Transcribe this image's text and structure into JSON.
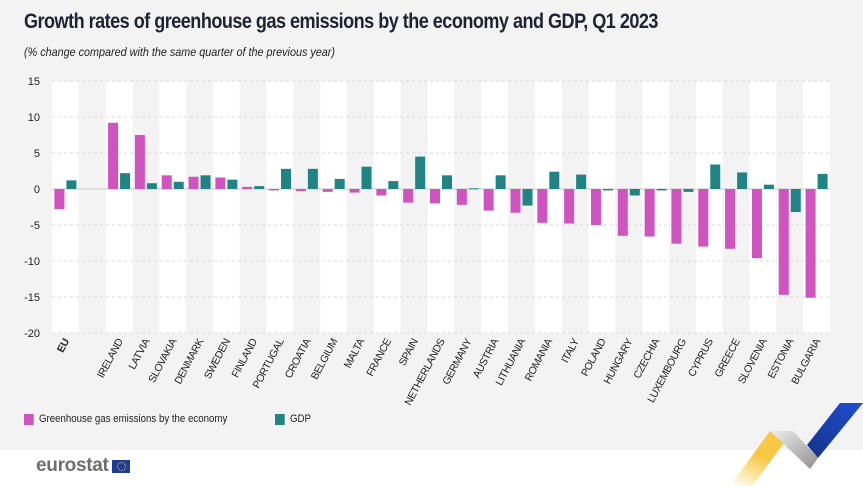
{
  "header": {
    "title": "Growth rates of greenhouse gas emissions by the economy and GDP, Q1 2023",
    "subtitle": "(% change compared with the same quarter of the previous year)"
  },
  "legend": {
    "ghg_label": "Greenhouse gas emissions by the economy",
    "gdp_label": "GDP"
  },
  "colors": {
    "ghg": "#d054c0",
    "gdp": "#1f8483",
    "band_light": "#ffffff",
    "band_dark": "#f3f3f3",
    "grid": "#d9d9d9"
  },
  "footer": {
    "logo_text": "eurostat"
  },
  "chart_data": {
    "type": "bar",
    "title": "Growth rates of greenhouse gas emissions by the economy and GDP, Q1 2023",
    "subtitle": "(% change compared with the same quarter of the previous year)",
    "xlabel": "",
    "ylabel": "",
    "ylim": [
      -20,
      15
    ],
    "yticks": [
      15,
      10,
      5,
      0,
      -5,
      -10,
      -15,
      -20
    ],
    "grid": true,
    "legend_position": "bottom-left",
    "categories": [
      "EU",
      "",
      "IRELAND",
      "LATVIA",
      "SLOVAKIA",
      "DENMARK",
      "SWEDEN",
      "FINLAND",
      "PORTUGAL",
      "CROATIA",
      "BELGIUM",
      "MALTA",
      "FRANCE",
      "SPAIN",
      "NETHERLANDS",
      "GERMANY",
      "AUSTRIA",
      "LITHUANIA",
      "ROMANIA",
      "ITALY",
      "POLAND",
      "HUNGARY",
      "CZECHIA",
      "LUXEMBOURG",
      "CYPRUS",
      "GREECE",
      "SLOVENIA",
      "ESTONIA",
      "BULGARIA"
    ],
    "series": [
      {
        "name": "Greenhouse gas emissions by the economy",
        "values": [
          -2.8,
          null,
          9.2,
          7.5,
          1.9,
          1.7,
          1.6,
          0.3,
          -0.2,
          -0.3,
          -0.4,
          -0.5,
          -0.9,
          -1.9,
          -2.0,
          -2.2,
          -3.0,
          -3.3,
          -4.7,
          -4.8,
          -5.0,
          -6.5,
          -6.6,
          -7.6,
          -8.0,
          -8.3,
          -9.6,
          -14.7,
          -15.1
        ]
      },
      {
        "name": "GDP",
        "values": [
          1.2,
          null,
          2.2,
          0.8,
          1.0,
          1.9,
          1.3,
          0.4,
          2.8,
          2.8,
          1.4,
          3.1,
          1.1,
          4.5,
          1.9,
          0.1,
          1.9,
          -2.3,
          2.4,
          2.0,
          -0.2,
          -0.9,
          -0.2,
          -0.4,
          3.4,
          2.3,
          0.6,
          -3.2,
          2.1
        ]
      }
    ]
  }
}
